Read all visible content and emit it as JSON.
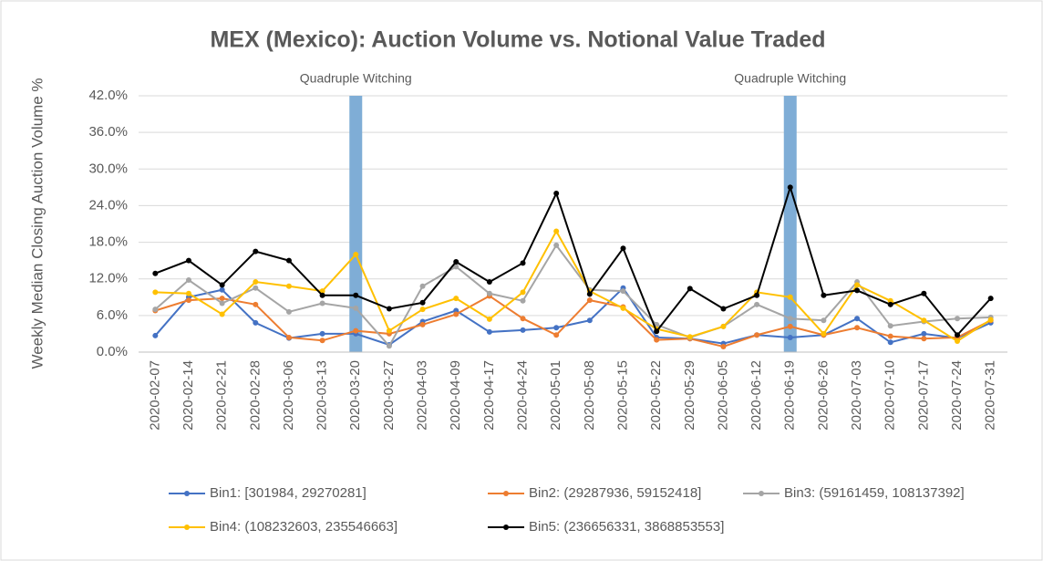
{
  "chart_data": {
    "type": "line",
    "title": "MEX (Mexico): Auction Volume vs. Notional Value Traded",
    "y_label": "Weekly Median Closing Auction Volume %",
    "categories": [
      "2020-02-07",
      "2020-02-14",
      "2020-02-21",
      "2020-02-28",
      "2020-03-06",
      "2020-03-13",
      "2020-03-20",
      "2020-03-27",
      "2020-04-03",
      "2020-04-09",
      "2020-04-17",
      "2020-04-24",
      "2020-05-01",
      "2020-05-08",
      "2020-05-15",
      "2020-05-22",
      "2020-05-29",
      "2020-06-05",
      "2020-06-12",
      "2020-06-19",
      "2020-06-26",
      "2020-07-03",
      "2020-07-10",
      "2020-07-17",
      "2020-07-24",
      "2020-07-31"
    ],
    "series": [
      {
        "name": "Bin1: [301984, 29270281]",
        "color": "#4472c4",
        "values": [
          2.7,
          9.0,
          10.2,
          4.8,
          2.3,
          3.0,
          3.0,
          1.2,
          5.0,
          6.8,
          3.3,
          3.6,
          4.0,
          5.2,
          10.5,
          2.4,
          2.2,
          1.4,
          2.8,
          2.4,
          2.8,
          5.5,
          1.6,
          3.0,
          2.3,
          4.8
        ]
      },
      {
        "name": "Bin2: (29287936, 59152418]",
        "color": "#ed7d31",
        "values": [
          6.8,
          8.5,
          8.8,
          7.8,
          2.4,
          1.9,
          3.5,
          3.0,
          4.5,
          6.2,
          9.2,
          5.5,
          2.8,
          8.5,
          7.4,
          2.0,
          2.2,
          0.9,
          2.8,
          4.2,
          2.8,
          4.0,
          2.6,
          2.2,
          2.4,
          5.2
        ]
      },
      {
        "name": "Bin3: (59161459, 108137392]",
        "color": "#a5a5a5",
        "values": [
          7.0,
          11.8,
          8.0,
          10.5,
          6.6,
          8.0,
          7.2,
          1.0,
          10.8,
          14.0,
          9.6,
          8.4,
          17.5,
          10.2,
          10.0,
          4.5,
          2.4,
          4.2,
          7.8,
          5.5,
          5.2,
          11.5,
          4.3,
          5.0,
          5.5,
          5.7
        ]
      },
      {
        "name": "Bin4: (108232603, 235546663]",
        "color": "#ffc000",
        "values": [
          9.8,
          9.6,
          6.2,
          11.5,
          10.8,
          10.0,
          16.0,
          3.5,
          7.0,
          8.8,
          5.4,
          9.8,
          19.8,
          10.0,
          7.2,
          3.8,
          2.5,
          4.2,
          9.8,
          9.0,
          3.0,
          11.0,
          8.4,
          5.2,
          1.8,
          5.3
        ]
      },
      {
        "name": "Bin5: (236656331, 3868853553]",
        "color": "#000000",
        "values": [
          12.9,
          15.0,
          11.0,
          16.5,
          15.0,
          9.3,
          9.3,
          7.1,
          8.1,
          14.8,
          11.5,
          14.6,
          26.0,
          9.5,
          17.0,
          3.4,
          10.4,
          7.1,
          9.3,
          27.0,
          9.3,
          10.1,
          7.8,
          9.6,
          2.8,
          8.8
        ]
      }
    ],
    "annotations": [
      {
        "text": "Quadruple Witching",
        "x": "2020-03-20",
        "color": "#7fadd6"
      },
      {
        "text": "Quadruple Witching",
        "x": "2020-06-19",
        "color": "#7fadd6"
      }
    ],
    "ylim": [
      0,
      42
    ],
    "yticks": [
      {
        "value": 0,
        "label": "0.0%"
      },
      {
        "value": 6,
        "label": "6.0%"
      },
      {
        "value": 12,
        "label": "12.0%"
      },
      {
        "value": 18,
        "label": "18.0%"
      },
      {
        "value": 24,
        "label": "24.0%"
      },
      {
        "value": 30,
        "label": "30.0%"
      },
      {
        "value": 36,
        "label": "36.0%"
      },
      {
        "value": 42,
        "label": "42.0%"
      }
    ],
    "grid": true,
    "legend": "bottom"
  }
}
